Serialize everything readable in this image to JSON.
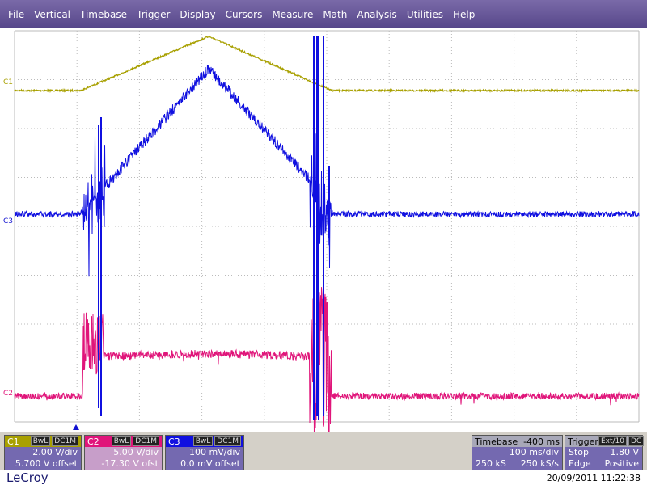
{
  "menu": [
    "File",
    "Vertical",
    "Timebase",
    "Trigger",
    "Display",
    "Cursors",
    "Measure",
    "Math",
    "Analysis",
    "Utilities",
    "Help"
  ],
  "trace_labels": {
    "c1": "C1",
    "c3": "C3",
    "c2": "C2"
  },
  "channels": [
    {
      "name": "C1",
      "bandwidth": "BwL",
      "coupling": "DC1M",
      "scale": "2.00 V/div",
      "offset": "5.700 V offset"
    },
    {
      "name": "C2",
      "bandwidth": "BwL",
      "coupling": "DC1M",
      "scale": "5.00 V/div",
      "offset": "-17.30 V ofst"
    },
    {
      "name": "C3",
      "bandwidth": "BwL",
      "coupling": "DC1M",
      "scale": "100 mV/div",
      "offset": "0.0 mV offset"
    }
  ],
  "timebase": {
    "title": "Timebase",
    "delay": "-400 ms",
    "scale": "100 ms/div",
    "samples": "250 kS",
    "rate": "250 kS/s"
  },
  "trigger": {
    "title": "Trigger",
    "source": "Ext/10",
    "coupling": "DC",
    "mode": "Stop",
    "level": "1.80 V",
    "type": "Edge",
    "slope": "Positive"
  },
  "footer": {
    "brand": "LeCroy",
    "timestamp": "20/09/2011 11:22:38"
  }
}
